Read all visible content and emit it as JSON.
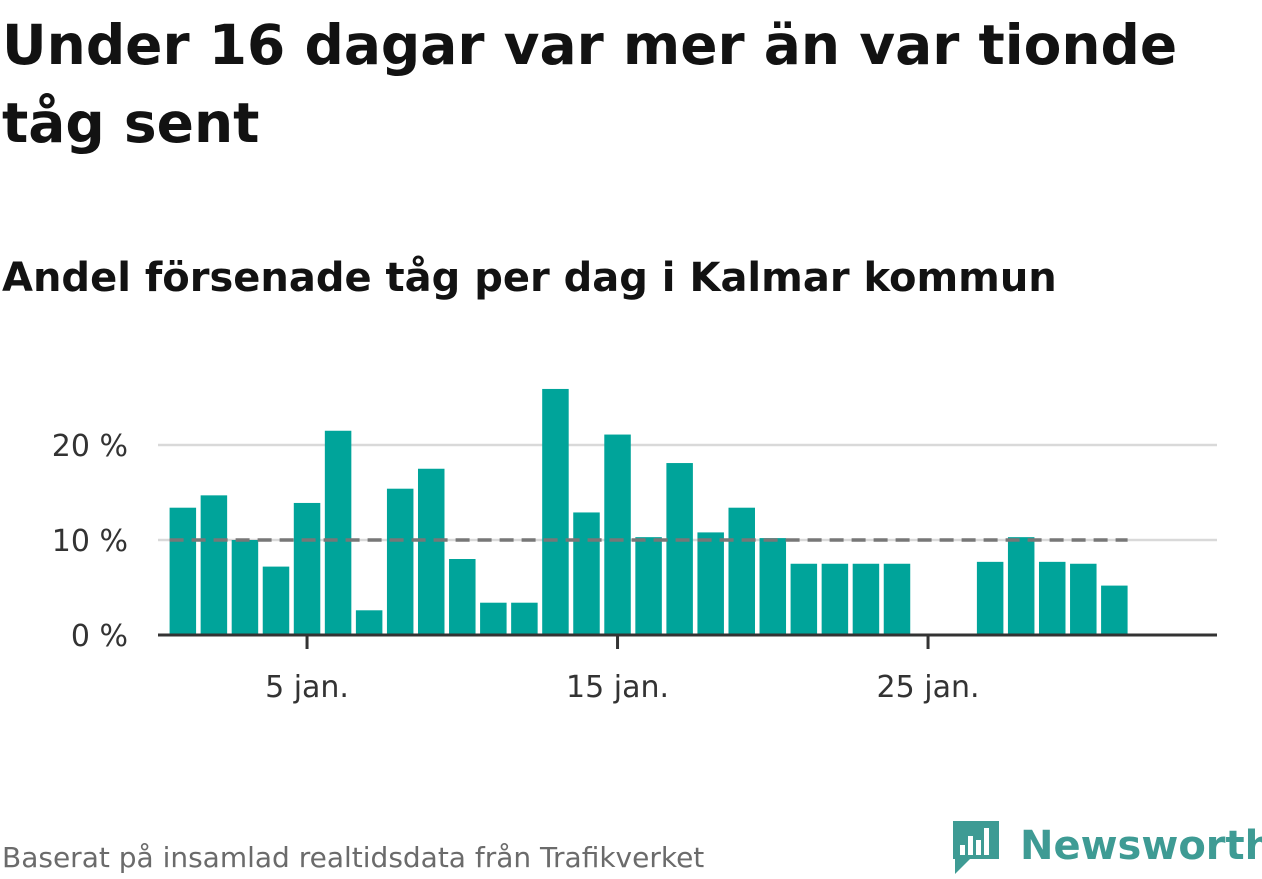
{
  "title": "Under 16 dagar var mer än var tionde tåg sent",
  "subtitle": "Andel försenade tåg per dag i Kalmar kommun",
  "source": "Baserat på insamlad realtidsdata från Trafikverket",
  "brand": {
    "name": "Newsworthy",
    "color": "#3e9b94"
  },
  "chart_data": {
    "type": "bar",
    "x_unit": "day of January",
    "x": [
      1,
      2,
      3,
      4,
      5,
      6,
      7,
      8,
      9,
      10,
      11,
      12,
      13,
      14,
      15,
      16,
      17,
      18,
      19,
      20,
      21,
      22,
      23,
      24,
      25,
      26,
      27,
      28,
      29,
      30,
      31
    ],
    "values": [
      13.4,
      14.7,
      10.0,
      7.2,
      13.9,
      21.5,
      2.6,
      15.4,
      17.5,
      8.0,
      3.4,
      3.4,
      25.9,
      12.9,
      21.1,
      10.3,
      18.1,
      10.8,
      13.4,
      10.2,
      7.5,
      7.5,
      7.5,
      7.5,
      0,
      0,
      7.7,
      10.3,
      7.7,
      7.5,
      5.2
    ],
    "bar_color": "#00a49a",
    "reference_line": {
      "value": 10,
      "color": "#777777",
      "style": "dashed"
    },
    "ylim": [
      0,
      27
    ],
    "y_ticks": [
      {
        "value": 0,
        "label": "0 %"
      },
      {
        "value": 10,
        "label": "10 %"
      },
      {
        "value": 20,
        "label": "20 %"
      }
    ],
    "x_ticks": [
      {
        "value": 5,
        "label": "5 jan."
      },
      {
        "value": 15,
        "label": "15 jan."
      },
      {
        "value": 25,
        "label": "25 jan."
      }
    ],
    "grid": true
  }
}
